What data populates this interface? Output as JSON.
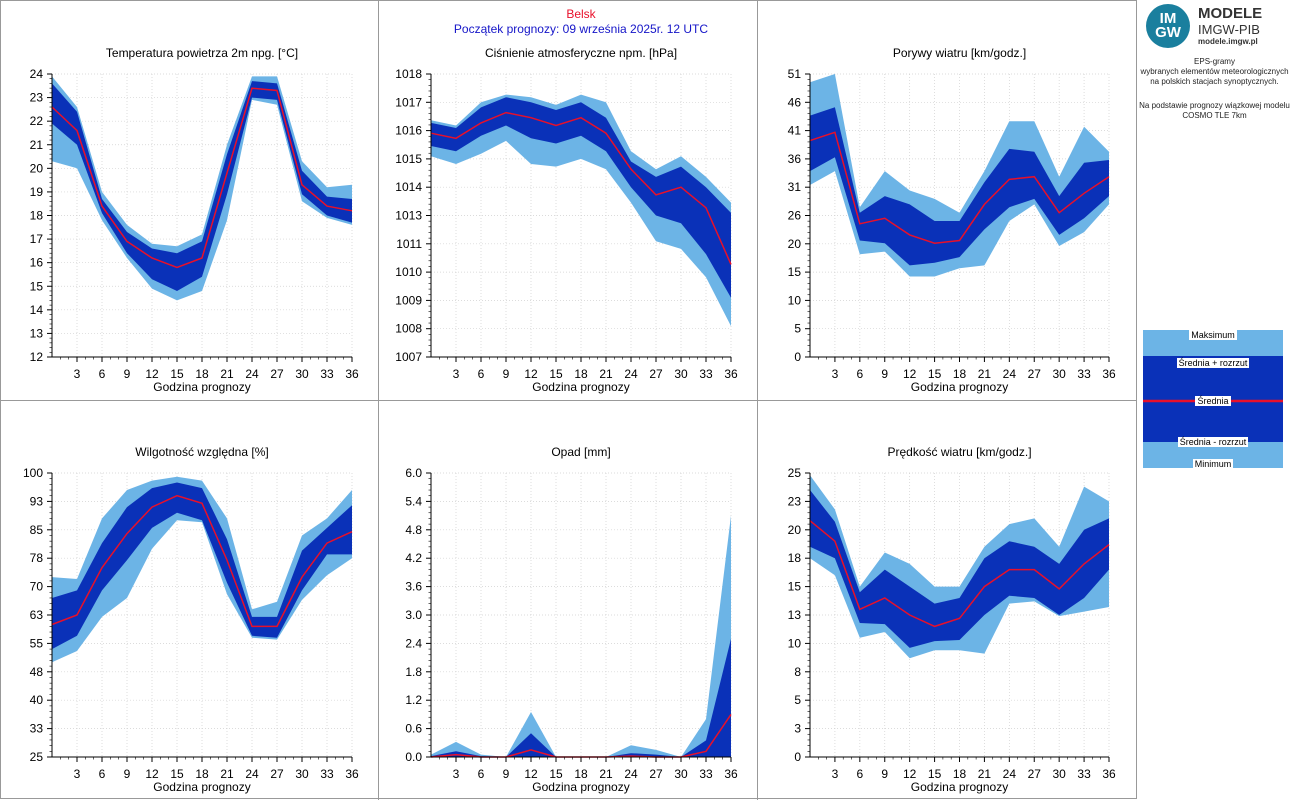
{
  "header": {
    "station": "Belsk",
    "forecast_start": "Początek prognozy: 09 września 2025r. 12 UTC"
  },
  "sidebar": {
    "logo_lines": [
      "IM",
      "GW"
    ],
    "logo_title": "MODELE",
    "logo_subtitle": "IMGW-PIB",
    "logo_url": "modele.imgw.pl",
    "desc1": [
      "EPS-gramy",
      "wybranych elementów meteorologicznych",
      "na polskich stacjach  synoptycznych."
    ],
    "desc2": [
      "Na podstawie prognozy wiązkowej modelu",
      "COSMO TLE 7km"
    ],
    "legend": {
      "max": "Maksimum",
      "mean_plus": "Średnia + rozrzut",
      "mean": "Średnia",
      "mean_minus": "Średnia - rozrzut",
      "min": "Minimum"
    }
  },
  "colors": {
    "light": "#6cb4e6",
    "dark": "#0a31b8",
    "mean": "#e8102a",
    "station": "#e8102a",
    "start": "#1515c8"
  },
  "chart_data": [
    {
      "type": "area",
      "title": "Temperatura powietrza 2m npg. [°C]",
      "xlabel": "Godzina prognozy",
      "x": [
        0,
        3,
        6,
        9,
        12,
        15,
        18,
        21,
        24,
        27,
        30,
        33,
        36
      ],
      "xticks": [
        "3",
        "6",
        "9",
        "12",
        "15",
        "18",
        "21",
        "24",
        "27",
        "30",
        "33",
        "36"
      ],
      "ylim": [
        12,
        24
      ],
      "yticks": [
        "12",
        "13",
        "14",
        "15",
        "16",
        "17",
        "18",
        "19",
        "20",
        "21",
        "22",
        "23",
        "24"
      ],
      "series": [
        {
          "name": "Maksimum",
          "values": [
            23.9,
            22.6,
            19.0,
            17.6,
            16.8,
            16.7,
            17.2,
            21.0,
            23.9,
            23.9,
            20.3,
            19.2,
            19.3
          ]
        },
        {
          "name": "Średnia + rozrzut",
          "values": [
            23.6,
            22.4,
            18.7,
            17.3,
            16.6,
            16.4,
            16.9,
            20.6,
            23.7,
            23.6,
            19.9,
            18.8,
            18.7
          ]
        },
        {
          "name": "Średnia",
          "values": [
            22.6,
            21.6,
            18.4,
            16.9,
            16.2,
            15.8,
            16.2,
            19.8,
            23.4,
            23.3,
            19.3,
            18.4,
            18.2
          ]
        },
        {
          "name": "Średnia - rozrzut",
          "values": [
            21.9,
            21.0,
            18.1,
            16.4,
            15.3,
            14.8,
            15.4,
            18.9,
            23.0,
            22.9,
            18.9,
            18.0,
            17.7
          ]
        },
        {
          "name": "Minimum",
          "values": [
            20.3,
            20.0,
            17.8,
            16.2,
            14.9,
            14.4,
            14.8,
            17.8,
            22.9,
            22.7,
            18.6,
            17.9,
            17.6
          ]
        }
      ]
    },
    {
      "type": "area",
      "title": "Ciśnienie atmosferyczne npm. [hPa]",
      "xlabel": "Godzina prognozy",
      "x": [
        0,
        3,
        6,
        9,
        12,
        15,
        18,
        21,
        24,
        27,
        30,
        33,
        36
      ],
      "xticks": [
        "3",
        "6",
        "9",
        "12",
        "15",
        "18",
        "21",
        "24",
        "27",
        "30",
        "33",
        "36"
      ],
      "ylim": [
        1007,
        1018
      ],
      "yticks": [
        "1007",
        "1008",
        "1009",
        "1010",
        "1011",
        "1013",
        "1014",
        "1015",
        "1016",
        "1017",
        "1018"
      ],
      "series": [
        {
          "name": "Maksimum",
          "values": [
            1016.2,
            1016.0,
            1016.9,
            1017.2,
            1017.1,
            1016.8,
            1017.2,
            1016.9,
            1015.0,
            1014.3,
            1014.8,
            1014.0,
            1013.0
          ]
        },
        {
          "name": "Średnia + rozrzut",
          "values": [
            1016.1,
            1015.9,
            1016.7,
            1017.1,
            1016.9,
            1016.6,
            1016.9,
            1016.3,
            1014.6,
            1014.0,
            1014.4,
            1013.6,
            1012.6
          ]
        },
        {
          "name": "Średnia",
          "values": [
            1015.7,
            1015.5,
            1016.1,
            1016.5,
            1016.3,
            1016.0,
            1016.3,
            1015.7,
            1014.3,
            1013.3,
            1013.6,
            1012.8,
            1010.6
          ]
        },
        {
          "name": "Średnia - rozrzut",
          "values": [
            1015.2,
            1015.0,
            1015.6,
            1016.0,
            1015.5,
            1015.3,
            1015.6,
            1015.0,
            1013.6,
            1012.5,
            1012.2,
            1011.0,
            1009.3
          ]
        },
        {
          "name": "Minimum",
          "values": [
            1014.8,
            1014.5,
            1014.9,
            1015.4,
            1014.5,
            1014.4,
            1014.7,
            1014.3,
            1013.0,
            1011.5,
            1011.2,
            1010.1,
            1008.2
          ]
        }
      ]
    },
    {
      "type": "area",
      "title": "Porywy wiatru [km/godz.]",
      "xlabel": "Godzina prognozy",
      "x": [
        0,
        3,
        6,
        9,
        12,
        15,
        18,
        21,
        24,
        27,
        30,
        33,
        36
      ],
      "xticks": [
        "3",
        "6",
        "9",
        "12",
        "15",
        "18",
        "21",
        "24",
        "27",
        "30",
        "33",
        "36"
      ],
      "ylim": [
        0,
        51
      ],
      "yticks": [
        "0",
        "5",
        "10",
        "15",
        "20",
        "26",
        "31",
        "36",
        "41",
        "46",
        "51"
      ],
      "series": [
        {
          "name": "Maksimum",
          "values": [
            49.5,
            51.0,
            27.0,
            33.5,
            30.0,
            28.5,
            26.0,
            33.5,
            42.5,
            42.5,
            32.5,
            41.5,
            37.0
          ]
        },
        {
          "name": "Średnia + rozrzut",
          "values": [
            43.5,
            45.0,
            26.0,
            29.0,
            27.5,
            24.5,
            24.5,
            31.5,
            37.5,
            37.0,
            29.0,
            35.0,
            35.5
          ]
        },
        {
          "name": "Średnia",
          "values": [
            39.0,
            40.5,
            24.0,
            25.0,
            22.0,
            20.5,
            21.0,
            27.5,
            32.0,
            32.5,
            26.0,
            29.5,
            32.5
          ]
        },
        {
          "name": "Średnia - rozrzut",
          "values": [
            33.5,
            36.0,
            21.0,
            20.5,
            16.5,
            17.0,
            18.0,
            23.0,
            27.0,
            28.5,
            22.0,
            25.0,
            29.0
          ]
        },
        {
          "name": "Minimum",
          "values": [
            31.0,
            33.5,
            18.5,
            19.0,
            14.5,
            14.5,
            16.0,
            16.5,
            24.5,
            27.5,
            20.0,
            22.5,
            27.5
          ]
        }
      ]
    },
    {
      "type": "area",
      "title": "Wilgotność względna [%]",
      "xlabel": "Godzina prognozy",
      "x": [
        0,
        3,
        6,
        9,
        12,
        15,
        18,
        21,
        24,
        27,
        30,
        33,
        36
      ],
      "xticks": [
        "3",
        "6",
        "9",
        "12",
        "15",
        "18",
        "21",
        "24",
        "27",
        "30",
        "33",
        "36"
      ],
      "ylim": [
        25,
        100
      ],
      "yticks": [
        "25",
        "33",
        "40",
        "48",
        "55",
        "63",
        "70",
        "78",
        "85",
        "93",
        "100"
      ],
      "series": [
        {
          "name": "Maksimum",
          "values": [
            72.5,
            72.0,
            88.0,
            95.5,
            98.0,
            99.0,
            98.0,
            88.0,
            64.0,
            66.0,
            83.5,
            88.0,
            95.5
          ]
        },
        {
          "name": "Średnia + rozrzut",
          "values": [
            67.0,
            69.0,
            81.5,
            91.0,
            96.0,
            97.5,
            96.0,
            82.5,
            62.0,
            62.0,
            79.5,
            85.5,
            91.5
          ]
        },
        {
          "name": "Średnia",
          "values": [
            60.0,
            62.5,
            75.0,
            84.0,
            91.0,
            94.0,
            92.0,
            77.0,
            59.5,
            59.5,
            72.5,
            81.5,
            84.5
          ]
        },
        {
          "name": "Średnia - rozrzut",
          "values": [
            53.5,
            57.0,
            69.0,
            77.0,
            85.5,
            89.5,
            87.5,
            71.0,
            57.0,
            56.5,
            69.0,
            78.5,
            78.5
          ]
        },
        {
          "name": "Minimum",
          "values": [
            50.0,
            53.0,
            62.0,
            67.0,
            80.0,
            87.5,
            87.0,
            68.0,
            56.5,
            56.0,
            66.5,
            73.0,
            77.5
          ]
        }
      ]
    },
    {
      "type": "area",
      "title": "Opad [mm]",
      "xlabel": "Godzina prognozy",
      "x": [
        0,
        3,
        6,
        9,
        12,
        15,
        18,
        21,
        24,
        27,
        30,
        33,
        36
      ],
      "xticks": [
        "3",
        "6",
        "9",
        "12",
        "15",
        "18",
        "21",
        "24",
        "27",
        "30",
        "33",
        "36"
      ],
      "ylim": [
        0,
        6
      ],
      "yticks": [
        "0.0",
        "0.6",
        "1.2",
        "1.8",
        "2.4",
        "3.0",
        "3.6",
        "4.2",
        "4.8",
        "5.4",
        "6.0"
      ],
      "series": [
        {
          "name": "Maksimum",
          "values": [
            0.05,
            0.32,
            0.05,
            0.0,
            0.95,
            0.0,
            0.0,
            0.0,
            0.25,
            0.15,
            0.0,
            0.8,
            5.1
          ]
        },
        {
          "name": "Średnia + rozrzut",
          "values": [
            0.02,
            0.12,
            0.02,
            0.0,
            0.5,
            0.0,
            0.0,
            0.0,
            0.08,
            0.05,
            0.0,
            0.35,
            2.5
          ]
        },
        {
          "name": "Średnia",
          "values": [
            0.0,
            0.05,
            0.0,
            0.0,
            0.15,
            0.0,
            0.0,
            0.0,
            0.02,
            0.0,
            0.0,
            0.12,
            0.9
          ]
        },
        {
          "name": "Średnia - rozrzut",
          "values": [
            0,
            0,
            0,
            0,
            0,
            0,
            0,
            0,
            0,
            0,
            0,
            0,
            0
          ]
        },
        {
          "name": "Minimum",
          "values": [
            0,
            0,
            0,
            0,
            0,
            0,
            0,
            0,
            0,
            0,
            0,
            0,
            0
          ]
        }
      ]
    },
    {
      "type": "area",
      "title": "Prędkość wiatru [km/godz.]",
      "xlabel": "Godzina prognozy",
      "x": [
        0,
        3,
        6,
        9,
        12,
        15,
        18,
        21,
        24,
        27,
        30,
        33,
        36
      ],
      "xticks": [
        "3",
        "6",
        "9",
        "12",
        "15",
        "18",
        "21",
        "24",
        "27",
        "30",
        "33",
        "36"
      ],
      "ylim": [
        0,
        25
      ],
      "yticks": [
        "0",
        "3",
        "5",
        "8",
        "10",
        "13",
        "15",
        "18",
        "20",
        "23",
        "25"
      ],
      "series": [
        {
          "name": "Maksimum",
          "values": [
            24.8,
            21.8,
            15.0,
            18.0,
            17.0,
            15.0,
            15.0,
            18.5,
            20.5,
            21.0,
            18.5,
            23.8,
            22.5
          ]
        },
        {
          "name": "Średnia + rozrzut",
          "values": [
            23.5,
            20.7,
            14.5,
            16.5,
            15.0,
            13.5,
            14.0,
            17.5,
            19.0,
            18.5,
            17.0,
            20.0,
            21.0
          ]
        },
        {
          "name": "Średnia",
          "values": [
            20.8,
            19.0,
            13.0,
            14.0,
            12.5,
            11.5,
            12.2,
            15.0,
            16.5,
            16.5,
            14.8,
            17.0,
            18.7
          ]
        },
        {
          "name": "Średnia - rozrzut",
          "values": [
            18.5,
            17.5,
            11.8,
            11.7,
            9.6,
            10.2,
            10.3,
            12.5,
            14.2,
            14.0,
            12.5,
            14.0,
            16.5
          ]
        },
        {
          "name": "Minimum",
          "values": [
            17.5,
            16.0,
            10.5,
            11.0,
            8.7,
            9.4,
            9.4,
            9.1,
            13.5,
            13.7,
            12.4,
            12.8,
            13.2
          ]
        }
      ]
    }
  ]
}
